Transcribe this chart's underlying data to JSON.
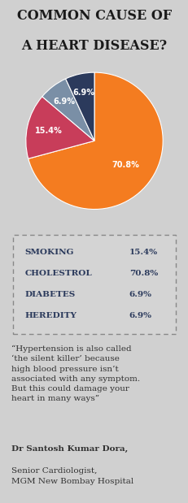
{
  "title_line1": "COMMON CAUSE OF",
  "title_line2": "A HEART DISEASE?",
  "title_fontsize": 11.5,
  "bg_color": "#d0d0d0",
  "pie_values": [
    70.8,
    15.4,
    6.9,
    6.9
  ],
  "pie_labels": [
    "70.8%",
    "15.4%",
    "6.9%",
    "6.9%"
  ],
  "pie_colors": [
    "#f47c20",
    "#c83d5a",
    "#7a8fa6",
    "#2b3a5c"
  ],
  "pie_startangle": 90,
  "pie_label_radii": [
    0.58,
    0.68,
    0.72,
    0.72
  ],
  "legend_items": [
    {
      "label": "SMOKING",
      "value": "15.4%"
    },
    {
      "label": "CHOLESTROL",
      "value": "70.8%"
    },
    {
      "label": "DIABETES",
      "value": "6.9%"
    },
    {
      "label": "HEREDITY",
      "value": "6.9%"
    }
  ],
  "legend_fontsize": 7.5,
  "legend_color": "#2b3a5c",
  "quote_text": "“Hypertension is also called\n‘the silent killer’ because\nhigh blood pressure isn’t\nassociated with any symptom.\nBut this could damage your\nheart in many ways”",
  "quote_bold": "Dr Santosh Kumar Dora,",
  "quote_rest": "Senior Cardiologist,\nMGM New Bombay Hospital",
  "quote_fontsize": 7.5,
  "text_color": "#333333"
}
